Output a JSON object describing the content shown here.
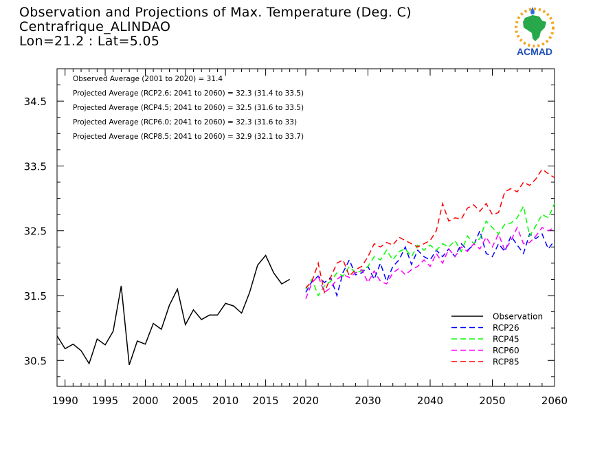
{
  "header": {
    "title": "Observation and Projections of Max. Temperature (Deg. C)",
    "location": "Centrafrique_ALINDAO",
    "coords": "Lon=21.2 : Lat=5.05"
  },
  "logo": {
    "text": "ACMAD",
    "name": "acmad-logo"
  },
  "annotations": [
    "Observed Average (2001 to 2020) = 31.4",
    "Projected Average (RCP2.6; 2041 to 2060) = 32.3 (31.4 to 33.5)",
    "Projected Average (RCP4.5; 2041 to 2060) = 32.5 (31.6 to 33.5)",
    "Projected Average (RCP6.0; 2041 to 2060) = 32.3 (31.6 to 33)",
    "Projected Average (RCP8.5; 2041 to 2060) = 32.9 (32.1 to 33.7)"
  ],
  "chart_data": {
    "type": "line",
    "title": "Observation and Projections of Max. Temperature (Deg. C)",
    "xlabel": "",
    "ylabel": "",
    "ylim": [
      30.1,
      35.0
    ],
    "xlim": [
      1989,
      2060
    ],
    "y_ticks": [
      30.5,
      31.5,
      32.5,
      33.5,
      34.5
    ],
    "y_tick_labels": [
      "30.5",
      "31.5",
      "32.5",
      "33.5",
      "34.5"
    ],
    "x_ticks_left": [
      1990,
      1995,
      2000,
      2005,
      2010,
      2015,
      2020
    ],
    "x_ticks_right": [
      2030,
      2040,
      2050,
      2060
    ],
    "x_tick_labels_left": [
      "1990",
      "1995",
      "2000",
      "2005",
      "2010",
      "2015",
      "2020"
    ],
    "x_tick_labels_right": [
      "2030",
      "2040",
      "2050",
      "2060"
    ],
    "legend_position": "bottom-right",
    "series": [
      {
        "name": "Observation",
        "color": "#000000",
        "dashed": false,
        "x": [
          1989,
          1990,
          1991,
          1992,
          1993,
          1994,
          1995,
          1996,
          1997,
          1998,
          1999,
          2000,
          2001,
          2002,
          2003,
          2004,
          2005,
          2006,
          2007,
          2008,
          2009,
          2010,
          2011,
          2012,
          2013,
          2014,
          2015,
          2016,
          2017,
          2018,
          2019
        ],
        "values": [
          30.88,
          30.68,
          30.75,
          30.65,
          30.45,
          30.83,
          30.74,
          30.95,
          31.65,
          30.43,
          30.8,
          30.75,
          31.07,
          30.98,
          31.35,
          31.6,
          31.05,
          31.28,
          31.13,
          31.2,
          31.2,
          31.38,
          31.34,
          31.23,
          31.55,
          31.97,
          32.12,
          31.85,
          31.68,
          31.75,
          null
        ]
      },
      {
        "name": "RCP26",
        "color": "#0000ff",
        "dashed": true,
        "x": [
          2020,
          2021,
          2022,
          2023,
          2024,
          2025,
          2026,
          2027,
          2028,
          2029,
          2030,
          2031,
          2032,
          2033,
          2034,
          2035,
          2036,
          2037,
          2038,
          2039,
          2040,
          2041,
          2042,
          2043,
          2044,
          2045,
          2046,
          2047,
          2048,
          2049,
          2050,
          2051,
          2052,
          2053,
          2054,
          2055,
          2056,
          2057,
          2058,
          2059,
          2060
        ],
        "values": [
          31.55,
          31.72,
          31.8,
          31.7,
          31.78,
          31.5,
          31.86,
          32.05,
          31.82,
          31.85,
          31.95,
          31.75,
          32.0,
          31.72,
          31.95,
          32.05,
          32.25,
          31.98,
          32.2,
          32.1,
          32.05,
          32.2,
          32.1,
          32.22,
          32.1,
          32.3,
          32.2,
          32.28,
          32.5,
          32.15,
          32.1,
          32.3,
          32.18,
          32.42,
          32.28,
          32.15,
          32.45,
          32.38,
          32.45,
          32.22,
          32.35
        ]
      },
      {
        "name": "RCP45",
        "color": "#00ff00",
        "dashed": true,
        "x": [
          2020,
          2021,
          2022,
          2023,
          2024,
          2025,
          2026,
          2027,
          2028,
          2029,
          2030,
          2031,
          2032,
          2033,
          2034,
          2035,
          2036,
          2037,
          2038,
          2039,
          2040,
          2041,
          2042,
          2043,
          2044,
          2045,
          2046,
          2047,
          2048,
          2049,
          2050,
          2051,
          2052,
          2053,
          2054,
          2055,
          2056,
          2057,
          2058,
          2059,
          2060
        ],
        "values": [
          31.6,
          31.75,
          31.5,
          31.65,
          31.72,
          31.85,
          31.8,
          31.95,
          31.85,
          31.88,
          31.95,
          32.1,
          32.05,
          32.2,
          32.05,
          32.18,
          32.22,
          32.1,
          32.28,
          32.2,
          32.28,
          32.2,
          32.3,
          32.25,
          32.35,
          32.18,
          32.42,
          32.3,
          32.38,
          32.65,
          32.55,
          32.45,
          32.6,
          32.62,
          32.7,
          32.88,
          32.42,
          32.58,
          32.75,
          32.7,
          32.92
        ]
      },
      {
        "name": "RCP60",
        "color": "#ff00ff",
        "dashed": true,
        "x": [
          2020,
          2021,
          2022,
          2023,
          2024,
          2025,
          2026,
          2027,
          2028,
          2029,
          2030,
          2031,
          2032,
          2033,
          2034,
          2035,
          2036,
          2037,
          2038,
          2039,
          2040,
          2041,
          2042,
          2043,
          2044,
          2045,
          2046,
          2047,
          2048,
          2049,
          2050,
          2051,
          2052,
          2053,
          2054,
          2055,
          2056,
          2057,
          2058,
          2059,
          2060
        ],
        "values": [
          31.45,
          31.7,
          31.8,
          31.55,
          31.62,
          31.75,
          31.82,
          31.78,
          31.85,
          31.9,
          31.7,
          31.88,
          31.72,
          31.68,
          31.85,
          31.92,
          31.82,
          31.9,
          31.95,
          32.05,
          31.95,
          32.15,
          32.0,
          32.22,
          32.1,
          32.25,
          32.18,
          32.3,
          32.22,
          32.4,
          32.25,
          32.45,
          32.2,
          32.35,
          32.55,
          32.3,
          32.32,
          32.42,
          32.55,
          32.5,
          32.55
        ]
      },
      {
        "name": "RCP85",
        "color": "#ff0000",
        "dashed": true,
        "x": [
          2020,
          2021,
          2022,
          2023,
          2024,
          2025,
          2026,
          2027,
          2028,
          2029,
          2030,
          2031,
          2032,
          2033,
          2034,
          2035,
          2036,
          2037,
          2038,
          2039,
          2040,
          2041,
          2042,
          2043,
          2044,
          2045,
          2046,
          2047,
          2048,
          2049,
          2050,
          2051,
          2052,
          2053,
          2054,
          2055,
          2056,
          2057,
          2058,
          2059,
          2060
        ],
        "values": [
          31.62,
          31.72,
          32.0,
          31.55,
          31.78,
          32.0,
          32.05,
          31.8,
          31.9,
          31.95,
          32.1,
          32.3,
          32.25,
          32.32,
          32.28,
          32.4,
          32.35,
          32.3,
          32.25,
          32.3,
          32.35,
          32.5,
          32.92,
          32.65,
          32.7,
          32.68,
          32.85,
          32.9,
          32.8,
          32.92,
          32.75,
          32.78,
          33.1,
          33.15,
          33.1,
          33.25,
          33.2,
          33.3,
          33.45,
          33.38,
          33.32
        ]
      }
    ]
  }
}
